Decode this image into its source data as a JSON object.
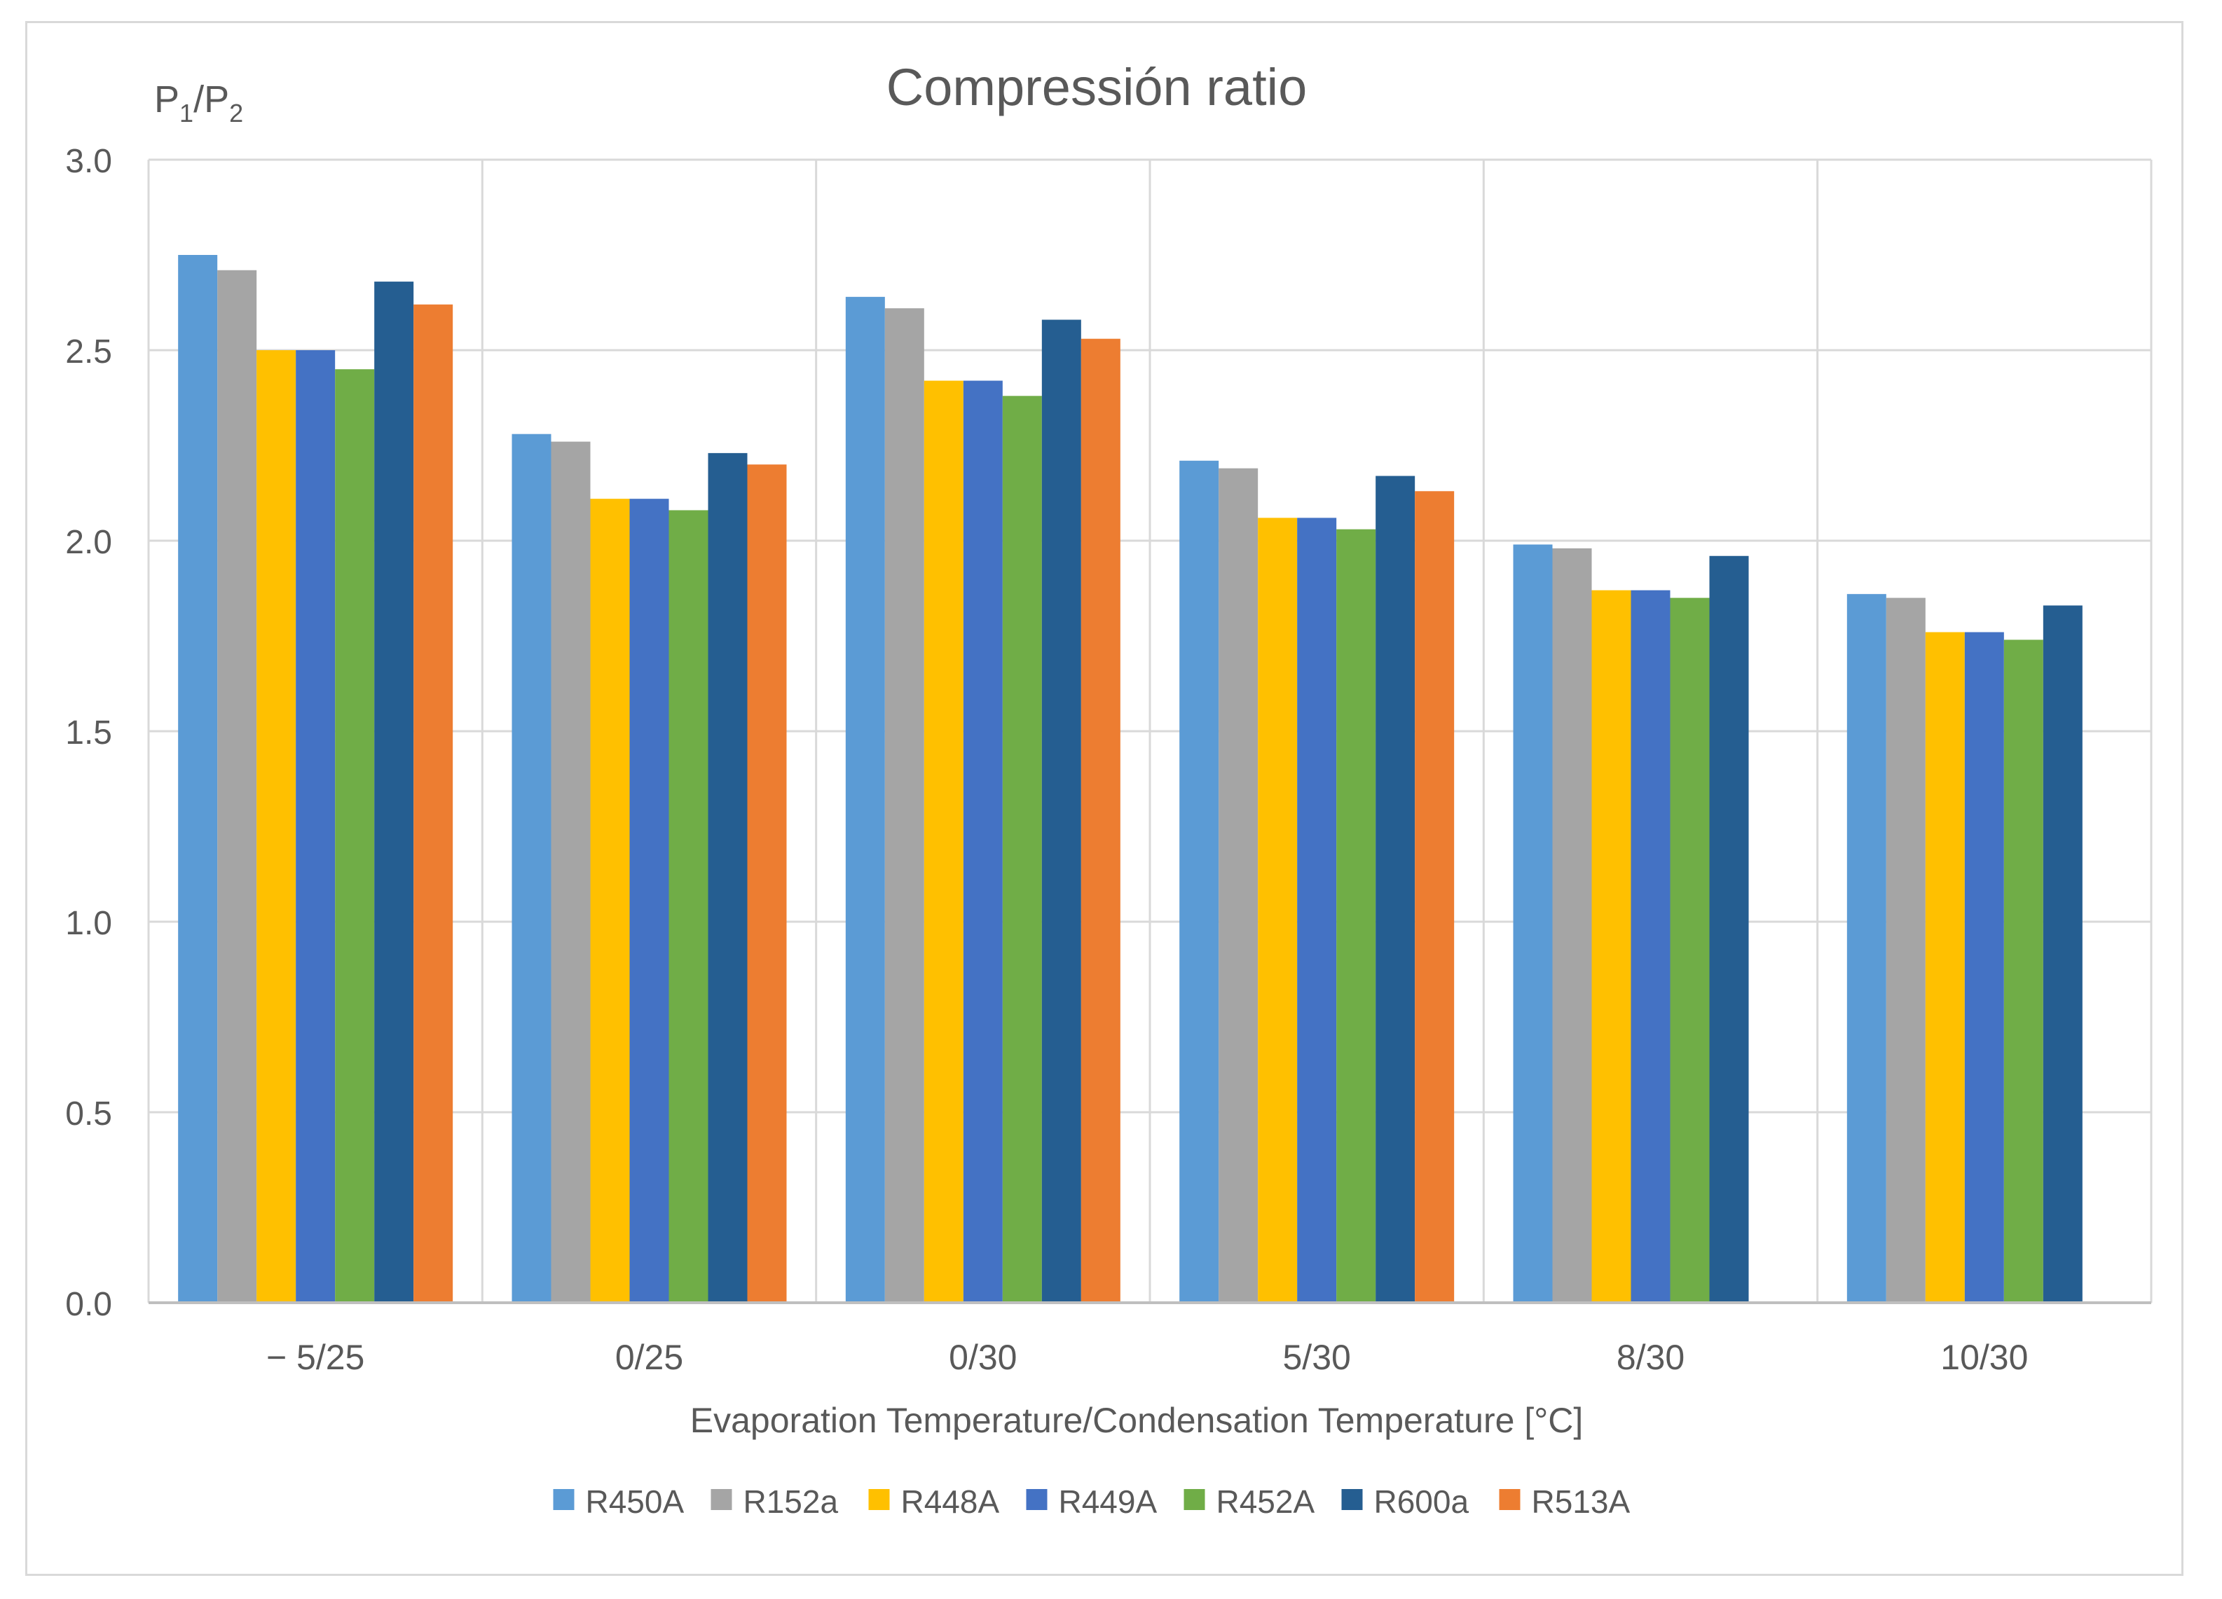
{
  "chart_data": {
    "type": "bar",
    "title": "Compressión ratio",
    "ylabel_main": "P",
    "ylabel_sub1": "1",
    "ylabel_sep": "/P",
    "ylabel_sub2": "2",
    "xlabel": "Evaporation Temperature/Condensation Temperature [°C]",
    "ylim": [
      0,
      3.0
    ],
    "yticks": [
      "0.0",
      "0.5",
      "1.0",
      "1.5",
      "2.0",
      "2.5",
      "3.0"
    ],
    "grid": true,
    "legend_position": "bottom",
    "categories": [
      "− 5/25",
      "0/25",
      "0/30",
      "5/30",
      "8/30",
      "10/30"
    ],
    "series": [
      {
        "name": "R450A",
        "color": "#5b9bd5",
        "values": [
          2.75,
          2.28,
          2.64,
          2.21,
          1.99,
          1.86
        ]
      },
      {
        "name": "R152a",
        "color": "#a5a5a5",
        "values": [
          2.71,
          2.26,
          2.61,
          2.19,
          1.98,
          1.85
        ]
      },
      {
        "name": "R448A",
        "color": "#ffc000",
        "values": [
          2.5,
          2.11,
          2.42,
          2.06,
          1.87,
          1.76
        ]
      },
      {
        "name": "R449A",
        "color": "#4472c4",
        "values": [
          2.5,
          2.11,
          2.42,
          2.06,
          1.87,
          1.76
        ]
      },
      {
        "name": "R452A",
        "color": "#70ad47",
        "values": [
          2.45,
          2.08,
          2.38,
          2.03,
          1.85,
          1.74
        ]
      },
      {
        "name": "R600a",
        "color": "#255e91",
        "values": [
          2.68,
          2.23,
          2.58,
          2.17,
          1.96,
          1.83
        ]
      },
      {
        "name": "R513A",
        "color": "#ed7d31",
        "values": [
          2.62,
          2.2,
          2.53,
          2.13,
          null,
          null
        ]
      }
    ]
  }
}
